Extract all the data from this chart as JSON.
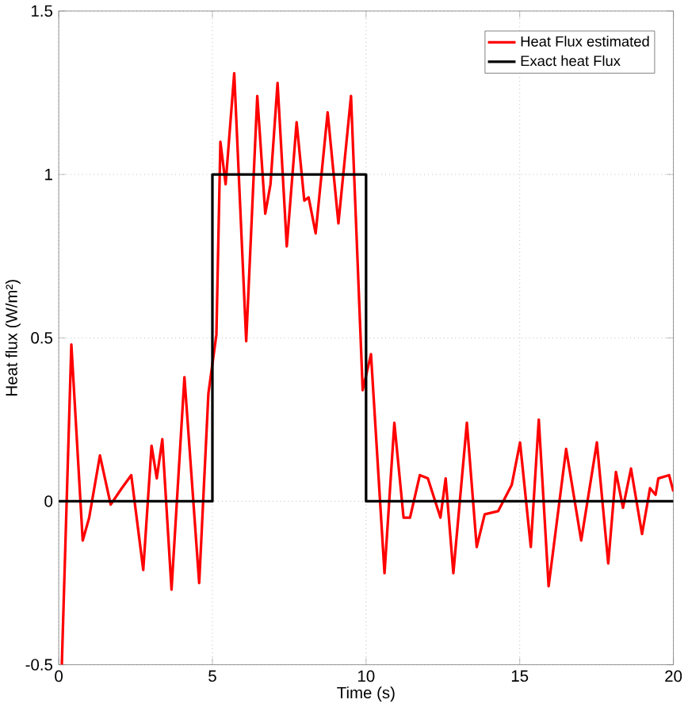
{
  "chart_data": {
    "type": "line",
    "xlabel": "Time (s)",
    "ylabel": "Heat flux (W/m²)",
    "xlim": [
      0,
      20
    ],
    "ylim": [
      -0.5,
      1.5
    ],
    "xticks": [
      0,
      5,
      10,
      15,
      20
    ],
    "yticks": [
      -0.5,
      0,
      0.5,
      1,
      1.5
    ],
    "grid": true,
    "legend": "top right",
    "line_style": "solid",
    "marker": "none",
    "series": [
      {
        "name": "Heat Flux estimated",
        "color": "#ff0000",
        "x": [
          0.1,
          0.41,
          0.78,
          0.99,
          1.34,
          1.69,
          2.05,
          2.36,
          2.75,
          3.02,
          3.19,
          3.37,
          3.67,
          4.09,
          4.57,
          4.87,
          5.13,
          5.26,
          5.43,
          5.71,
          6.1,
          6.46,
          6.72,
          6.89,
          7.12,
          7.42,
          7.74,
          7.99,
          8.13,
          8.36,
          8.75,
          9.1,
          9.51,
          9.89,
          10.16,
          10.6,
          10.92,
          11.22,
          11.43,
          11.75,
          12.01,
          12.42,
          12.59,
          12.84,
          13.28,
          13.6,
          13.86,
          14.3,
          14.74,
          15.01,
          15.36,
          15.62,
          15.94,
          16.51,
          17.0,
          17.51,
          17.88,
          18.13,
          18.36,
          18.62,
          18.98,
          19.24,
          19.42,
          19.51,
          19.86,
          20.0
        ],
        "values": [
          -0.5,
          0.48,
          -0.12,
          -0.05,
          0.14,
          -0.01,
          0.04,
          0.08,
          -0.21,
          0.17,
          0.07,
          0.19,
          -0.27,
          0.38,
          -0.25,
          0.33,
          0.51,
          1.1,
          0.97,
          1.31,
          0.49,
          1.24,
          0.88,
          0.97,
          1.28,
          0.78,
          1.16,
          0.92,
          0.93,
          0.82,
          1.19,
          0.85,
          1.24,
          0.34,
          0.45,
          -0.22,
          0.24,
          -0.05,
          -0.05,
          0.08,
          0.07,
          -0.05,
          0.07,
          -0.22,
          0.24,
          -0.14,
          -0.04,
          -0.03,
          0.05,
          0.18,
          -0.14,
          0.25,
          -0.26,
          0.16,
          -0.12,
          0.18,
          -0.19,
          0.09,
          -0.02,
          0.1,
          -0.1,
          0.04,
          0.02,
          0.07,
          0.08,
          0.03
        ]
      },
      {
        "name": "Exact heat Flux",
        "color": "#000000",
        "x": [
          0,
          5,
          5,
          10,
          10,
          20
        ],
        "values": [
          0,
          0,
          1,
          1,
          0,
          0
        ]
      }
    ]
  }
}
